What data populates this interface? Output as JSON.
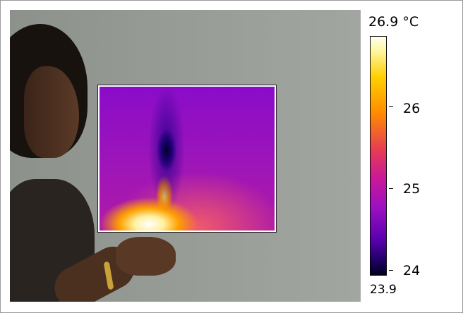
{
  "scale": {
    "max_label": "26.9 °C",
    "min_label": "23.9",
    "ticks": [
      {
        "label": "26"
      },
      {
        "label": "25"
      },
      {
        "label": "24"
      }
    ]
  },
  "colors": {
    "frame": "#9a9a9a",
    "wall": "#979b96",
    "ir_overlay_border": "#ffffff"
  }
}
